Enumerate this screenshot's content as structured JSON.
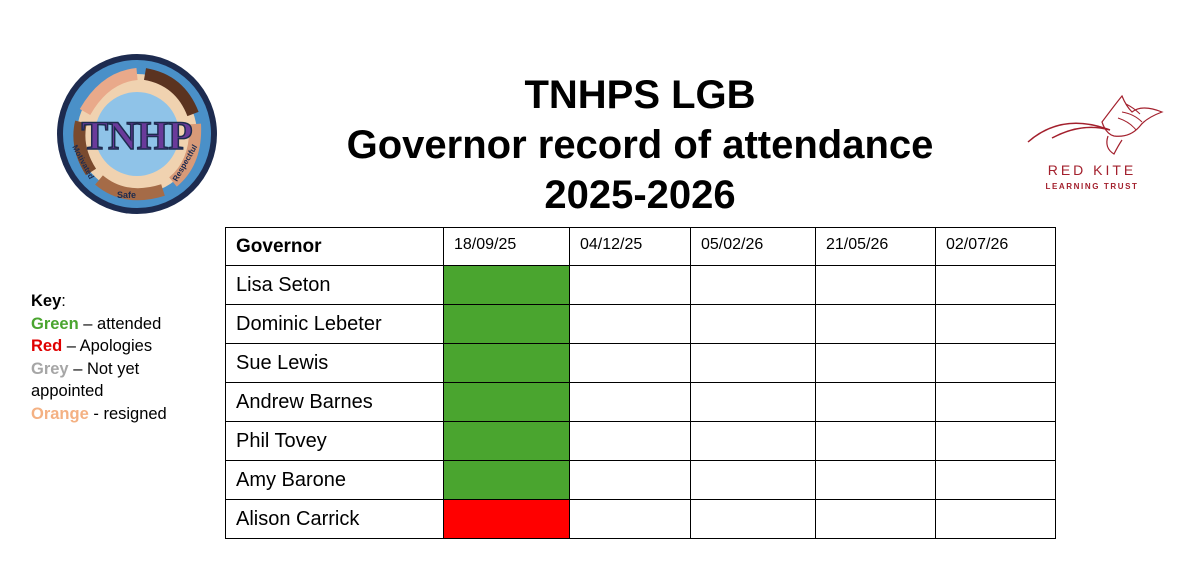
{
  "title": {
    "line1": "TNHPS LGB",
    "line2": "Governor record of attendance",
    "line3": "2025-2026"
  },
  "logo_left": {
    "center_text": "TNHP",
    "words": [
      "Motivated",
      "Safe",
      "Respectful"
    ]
  },
  "logo_right": {
    "name": "RED KITE",
    "subtitle": "LEARNING TRUST"
  },
  "key": {
    "title": "Key",
    "items": [
      {
        "color_word": "Green",
        "rest": " – attended",
        "color": "#4aa52f"
      },
      {
        "color_word": "Red",
        "rest": " – Apologies",
        "color": "#e00000"
      },
      {
        "color_word": "Grey",
        "rest": " – Not yet appointed",
        "color": "#a6a6a6"
      },
      {
        "color_word": "Orange",
        "rest": " - resigned",
        "color": "#f4b183"
      }
    ]
  },
  "table": {
    "header": "Governor",
    "dates": [
      "18/09/25",
      "04/12/25",
      "05/02/26",
      "21/05/26",
      "02/07/26"
    ],
    "status_colors": {
      "attended": "#4aa52f",
      "apologies": "#ff0000",
      "not_appointed": "#a6a6a6",
      "resigned": "#f4b183"
    },
    "rows": [
      {
        "name": "Lisa Seton",
        "attendance": [
          "attended",
          "",
          "",
          "",
          ""
        ]
      },
      {
        "name": "Dominic Lebeter",
        "attendance": [
          "attended",
          "",
          "",
          "",
          ""
        ]
      },
      {
        "name": "Sue Lewis",
        "attendance": [
          "attended",
          "",
          "",
          "",
          ""
        ]
      },
      {
        "name": "Andrew Barnes",
        "attendance": [
          "attended",
          "",
          "",
          "",
          ""
        ]
      },
      {
        "name": "Phil Tovey",
        "attendance": [
          "attended",
          "",
          "",
          "",
          ""
        ]
      },
      {
        "name": "Amy Barone",
        "attendance": [
          "attended",
          "",
          "",
          "",
          ""
        ]
      },
      {
        "name": "Alison Carrick",
        "attendance": [
          "apologies",
          "",
          "",
          "",
          ""
        ]
      }
    ]
  }
}
